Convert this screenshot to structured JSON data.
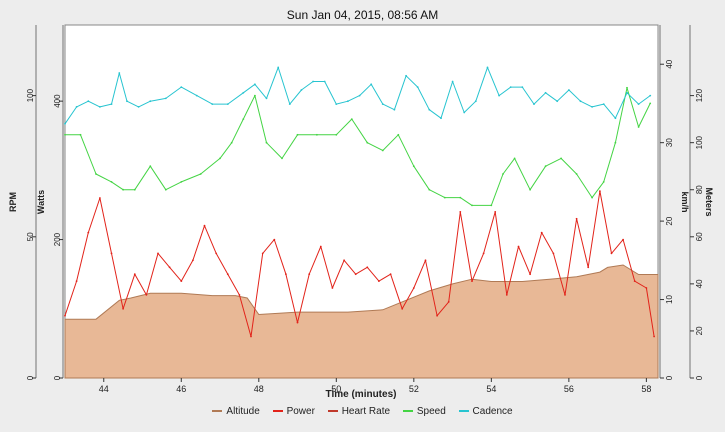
{
  "chart_data": {
    "type": "line",
    "title": "Sun Jan 04, 2015, 08:56 AM",
    "xlabel": "Time (minutes)",
    "x_ticks": [
      "44",
      "46",
      "48",
      "50",
      "52",
      "54",
      "56",
      "58"
    ],
    "xlim": [
      43.0,
      58.3
    ],
    "axes": {
      "rpm": {
        "label": "RPM",
        "ticks": [
          "0",
          "50",
          "100"
        ],
        "lim": [
          0,
          125
        ]
      },
      "watts": {
        "label": "Watts",
        "ticks": [
          "0",
          "200",
          "400"
        ],
        "lim": [
          0,
          510
        ]
      },
      "kmh": {
        "label": "km/h",
        "ticks": [
          "0",
          "10",
          "20",
          "30",
          "40"
        ],
        "lim": [
          0,
          45
        ]
      },
      "meters": {
        "label": "Meters",
        "ticks": [
          "0",
          "20",
          "40",
          "60",
          "80",
          "100",
          "120"
        ],
        "lim": [
          0,
          150
        ]
      }
    },
    "grid": false,
    "legend_position": "bottom",
    "legend": [
      "Altitude",
      "Power",
      "Heart Rate",
      "Speed",
      "Cadence"
    ],
    "colors": {
      "altitude": "#e8b896",
      "altitude_edge": "#b07a55",
      "power": "#e2231a",
      "heart_rate": "#c0392b",
      "speed": "#44d444",
      "cadence": "#27c4d0"
    },
    "series": [
      {
        "name": "Altitude",
        "axis": "meters",
        "x": [
          43.0,
          43.8,
          44.4,
          44.7,
          45.2,
          46.0,
          46.8,
          47.4,
          47.7,
          48.0,
          49.0,
          50.3,
          51.2,
          51.8,
          52.4,
          53.0,
          53.5,
          54.0,
          54.8,
          55.5,
          56.2,
          56.8,
          57.0,
          57.4,
          57.8,
          58.3
        ],
        "values": [
          25,
          25,
          33,
          34,
          36,
          36,
          35,
          35,
          34,
          27,
          28,
          28,
          29,
          33,
          37,
          40,
          42,
          41,
          41,
          42,
          43,
          45,
          47,
          48,
          44,
          44
        ]
      },
      {
        "name": "Speed",
        "axis": "kmh",
        "x": [
          43.0,
          43.4,
          43.8,
          44.2,
          44.5,
          44.8,
          45.2,
          45.6,
          46.0,
          46.5,
          47.0,
          47.3,
          47.6,
          47.9,
          48.2,
          48.6,
          49.0,
          49.5,
          50.0,
          50.4,
          50.8,
          51.2,
          51.6,
          52.0,
          52.4,
          52.8,
          53.2,
          53.5,
          54.0,
          54.3,
          54.6,
          55.0,
          55.4,
          55.8,
          56.2,
          56.6,
          56.9,
          57.2,
          57.5,
          57.8,
          58.1
        ],
        "values": [
          31,
          31,
          26,
          25,
          24,
          24,
          27,
          24,
          25,
          26,
          28,
          30,
          33,
          36,
          30,
          28,
          31,
          31,
          31,
          33,
          30,
          29,
          31,
          27,
          24,
          23,
          23,
          22,
          22,
          26,
          28,
          24,
          27,
          28,
          26,
          23,
          25,
          30,
          37,
          32,
          35
        ]
      },
      {
        "name": "Cadence",
        "axis": "rpm",
        "x": [
          43.0,
          43.3,
          43.6,
          43.9,
          44.2,
          44.4,
          44.6,
          44.9,
          45.2,
          45.6,
          46.0,
          46.4,
          46.8,
          47.2,
          47.6,
          47.9,
          48.2,
          48.5,
          48.8,
          49.1,
          49.4,
          49.7,
          50.0,
          50.3,
          50.6,
          50.9,
          51.2,
          51.5,
          51.8,
          52.1,
          52.4,
          52.7,
          53.0,
          53.3,
          53.6,
          53.9,
          54.2,
          54.5,
          54.8,
          55.1,
          55.4,
          55.7,
          56.0,
          56.3,
          56.6,
          56.9,
          57.2,
          57.5,
          57.8,
          58.1
        ],
        "values": [
          90,
          96,
          98,
          96,
          97,
          108,
          98,
          96,
          98,
          99,
          103,
          100,
          97,
          97,
          101,
          104,
          99,
          110,
          97,
          102,
          105,
          105,
          97,
          98,
          100,
          104,
          97,
          95,
          107,
          103,
          95,
          92,
          105,
          94,
          98,
          110,
          100,
          103,
          103,
          97,
          101,
          98,
          102,
          98,
          96,
          97,
          92,
          101,
          97,
          100
        ]
      },
      {
        "name": "Power",
        "axis": "watts",
        "x": [
          43.0,
          43.3,
          43.6,
          43.9,
          44.2,
          44.5,
          44.8,
          45.1,
          45.4,
          45.7,
          46.0,
          46.3,
          46.6,
          46.9,
          47.2,
          47.5,
          47.8,
          48.1,
          48.4,
          48.7,
          49.0,
          49.3,
          49.6,
          49.9,
          50.2,
          50.5,
          50.8,
          51.1,
          51.4,
          51.7,
          52.0,
          52.3,
          52.6,
          52.9,
          53.2,
          53.5,
          53.8,
          54.1,
          54.4,
          54.7,
          55.0,
          55.3,
          55.6,
          55.9,
          56.2,
          56.5,
          56.8,
          57.1,
          57.4,
          57.7,
          58.0,
          58.2
        ],
        "values": [
          90,
          140,
          210,
          260,
          180,
          100,
          150,
          120,
          180,
          160,
          140,
          170,
          220,
          180,
          150,
          120,
          60,
          180,
          200,
          150,
          80,
          150,
          190,
          130,
          170,
          150,
          160,
          140,
          150,
          100,
          130,
          170,
          90,
          110,
          240,
          140,
          180,
          240,
          120,
          190,
          150,
          210,
          180,
          120,
          230,
          160,
          270,
          180,
          200,
          140,
          130,
          60
        ]
      },
      {
        "name": "Heart Rate",
        "axis": "rpm",
        "values": []
      }
    ]
  }
}
